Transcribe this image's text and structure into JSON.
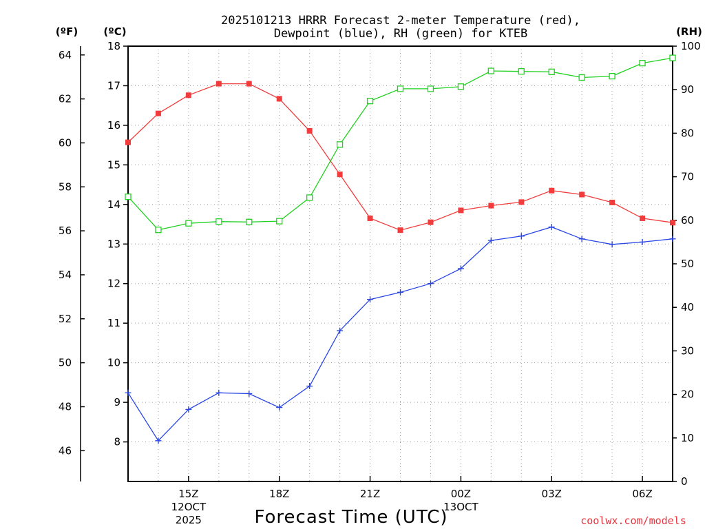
{
  "title": {
    "line1": "2025101213 HRRR Forecast 2-meter Temperature (red),",
    "line2": "Dewpoint (blue), RH (green) for KTEB"
  },
  "units": {
    "f": "(ºF)",
    "c": "(ºC)",
    "rh": "(RH)"
  },
  "credit": "coolwx.com/models",
  "colors": {
    "temperature": "#f03c3c",
    "dewpoint": "#2846e6",
    "rh": "#1fd21f",
    "credit": "#e8323c"
  },
  "chart_data": {
    "type": "line",
    "title": "2025101213 HRRR Forecast 2-meter Temperature (red), Dewpoint (blue), RH (green) for KTEB",
    "xlabel": "Forecast Time (UTC)",
    "x_hours_utc": [
      13,
      14,
      15,
      16,
      17,
      18,
      19,
      20,
      21,
      22,
      23,
      24,
      25,
      26,
      27,
      28,
      29,
      30,
      31
    ],
    "xlim": [
      13,
      31
    ],
    "x_ticks": [
      {
        "hour": 15,
        "label": "15Z",
        "sub1": "12OCT",
        "sub2": "2025"
      },
      {
        "hour": 18,
        "label": "18Z"
      },
      {
        "hour": 21,
        "label": "21Z"
      },
      {
        "hour": 24,
        "label": "00Z",
        "sub1": "13OCT"
      },
      {
        "hour": 27,
        "label": "03Z"
      },
      {
        "hour": 30,
        "label": "06Z"
      }
    ],
    "y_left_celsius": {
      "label": "(ºC)",
      "ylim": [
        7,
        18
      ],
      "ticks": [
        8,
        9,
        10,
        11,
        12,
        13,
        14,
        15,
        16,
        17,
        18
      ]
    },
    "y_left_fahrenheit": {
      "label": "(ºF)",
      "ticks": [
        46,
        48,
        50,
        52,
        54,
        56,
        58,
        60,
        62,
        64
      ]
    },
    "y_right_rh": {
      "label": "(RH)",
      "ylim": [
        0,
        100
      ],
      "ticks": [
        0,
        10,
        20,
        30,
        40,
        50,
        60,
        70,
        80,
        90,
        100
      ]
    },
    "series": [
      {
        "name": "Temperature",
        "axis": "celsius",
        "marker": "filled-square",
        "values": [
          15.57,
          16.3,
          16.76,
          17.05,
          17.05,
          16.67,
          15.86,
          14.76,
          13.65,
          13.35,
          13.55,
          13.85,
          13.97,
          14.06,
          14.35,
          14.25,
          14.05,
          13.65,
          13.54
        ]
      },
      {
        "name": "Dewpoint",
        "axis": "celsius",
        "marker": "plus",
        "values": [
          9.24,
          8.03,
          8.82,
          9.24,
          9.22,
          8.87,
          9.41,
          10.81,
          11.6,
          11.78,
          12.0,
          12.38,
          13.09,
          13.2,
          13.43,
          13.13,
          12.99,
          13.05,
          13.13
        ]
      },
      {
        "name": "RH",
        "axis": "rh",
        "marker": "open-square",
        "values": [
          65.4,
          57.8,
          59.3,
          59.7,
          59.6,
          59.8,
          65.2,
          77.4,
          87.4,
          90.2,
          90.2,
          90.7,
          94.3,
          94.2,
          94.1,
          92.8,
          93.1,
          96.1,
          97.3
        ]
      }
    ]
  }
}
